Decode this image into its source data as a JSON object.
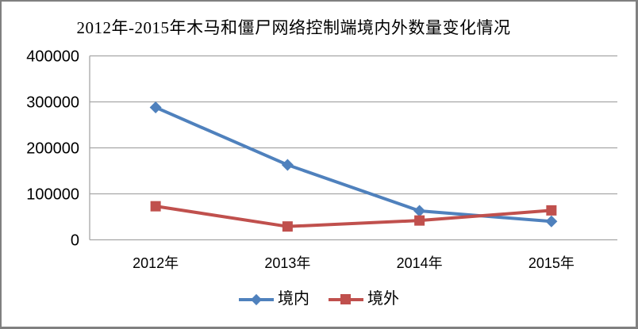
{
  "chart_data": {
    "type": "line",
    "title": "2012年-2015年木马和僵尸网络控制端境内外数量变化情况",
    "categories": [
      "2012年",
      "2013年",
      "2014年",
      "2015年"
    ],
    "series": [
      {
        "name": "境内",
        "color": "#4F81BD",
        "marker": "diamond",
        "values": [
          288000,
          163000,
          63000,
          40000
        ]
      },
      {
        "name": "境外",
        "color": "#C0504D",
        "marker": "square",
        "values": [
          73000,
          29000,
          42000,
          64000
        ]
      }
    ],
    "ylim": [
      0,
      400000
    ],
    "ytick_interval": 100000,
    "yticks": [
      0,
      100000,
      200000,
      300000,
      400000
    ],
    "ytick_labels": [
      "0",
      "100000",
      "200000",
      "300000",
      "400000"
    ],
    "grid": true,
    "legend_position": "bottom",
    "colors": {
      "gridline": "#A6A6A6",
      "axis": "#A6A6A6",
      "text": "#000000",
      "background": "#FFFFFF",
      "frame_border": "#808080"
    }
  }
}
